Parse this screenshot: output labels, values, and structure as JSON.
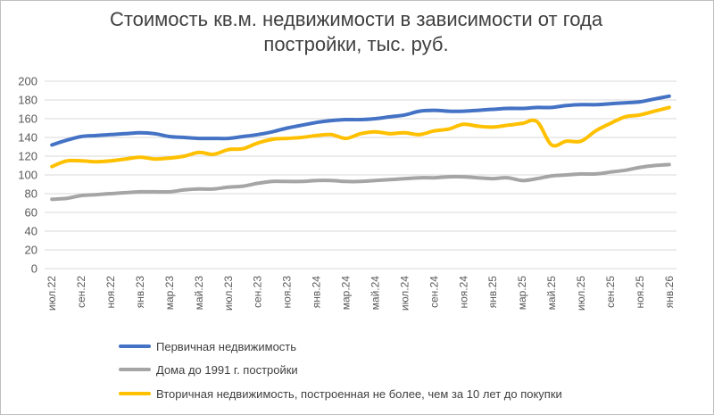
{
  "chart_data": {
    "type": "line",
    "title_line1": "Стоимость кв.м. недвижимости в зависимости от года",
    "title_line2": "постройки, тыс. руб.",
    "xlabel": "",
    "ylabel": "",
    "ylim": [
      0,
      200
    ],
    "yticks": [
      0,
      20,
      40,
      60,
      80,
      100,
      120,
      140,
      160,
      180,
      200
    ],
    "grid": true,
    "legend_position": "bottom",
    "x": [
      "июл.22",
      "авг.22",
      "сен.22",
      "окт.22",
      "ноя.22",
      "дек.22",
      "янв.23",
      "фев.23",
      "мар.23",
      "апр.23",
      "май.23",
      "июн.23",
      "июл.23",
      "авг.23",
      "сен.23",
      "окт.23",
      "ноя.23",
      "дек.23",
      "янв.24",
      "фев.24",
      "мар.24",
      "апр.24",
      "май.24",
      "июн.24",
      "июл.24",
      "авг.24",
      "сен.24",
      "окт.24",
      "ноя.24",
      "дек.24",
      "янв.25",
      "фев.25",
      "мар.25",
      "апр.25",
      "май.25",
      "июн.25",
      "июл.25",
      "авг.25",
      "сен.25",
      "окт.25",
      "ноя.25",
      "дек.25",
      "янв.26"
    ],
    "x_tick_labels": [
      "июл.22",
      "сен.22",
      "ноя.22",
      "янв.23",
      "мар.23",
      "май.23",
      "июл.23",
      "сен.23",
      "ноя.23",
      "янв.24",
      "мар.24",
      "май.24",
      "июл.24",
      "сен.24",
      "ноя.24",
      "янв.25",
      "мар.25",
      "май.25",
      "июл.25",
      "сен.25",
      "ноя.25",
      "янв.26"
    ],
    "series": [
      {
        "name": "Первичная недвижимость",
        "color": "#4472C4",
        "values": [
          132,
          137,
          141,
          142,
          143,
          144,
          145,
          144,
          141,
          140,
          139,
          139,
          139,
          141,
          143,
          146,
          150,
          153,
          156,
          158,
          159,
          159,
          160,
          162,
          164,
          168,
          169,
          168,
          168,
          169,
          170,
          171,
          171,
          172,
          172,
          174,
          175,
          175,
          176,
          177,
          178,
          181,
          184
        ]
      },
      {
        "name": "Дома до 1991 г. постройки",
        "color": "#A5A5A5",
        "values": [
          74,
          75,
          78,
          79,
          80,
          81,
          82,
          82,
          82,
          84,
          85,
          85,
          87,
          88,
          91,
          93,
          93,
          93,
          94,
          94,
          93,
          93,
          94,
          95,
          96,
          97,
          97,
          98,
          98,
          97,
          96,
          97,
          94,
          96,
          99,
          100,
          101,
          101,
          103,
          105,
          108,
          110,
          111
        ]
      },
      {
        "name": "Вторичная недвижимость, построенная не более, чем за 10 лет до покупки",
        "color": "#FFC000",
        "values": [
          109,
          115,
          115,
          114,
          115,
          117,
          119,
          117,
          118,
          120,
          124,
          122,
          127,
          128,
          134,
          138,
          139,
          140,
          142,
          143,
          139,
          144,
          146,
          144,
          145,
          143,
          147,
          149,
          154,
          152,
          151,
          153,
          155,
          157,
          132,
          136,
          136,
          147,
          155,
          162,
          164,
          168,
          172
        ]
      }
    ]
  }
}
